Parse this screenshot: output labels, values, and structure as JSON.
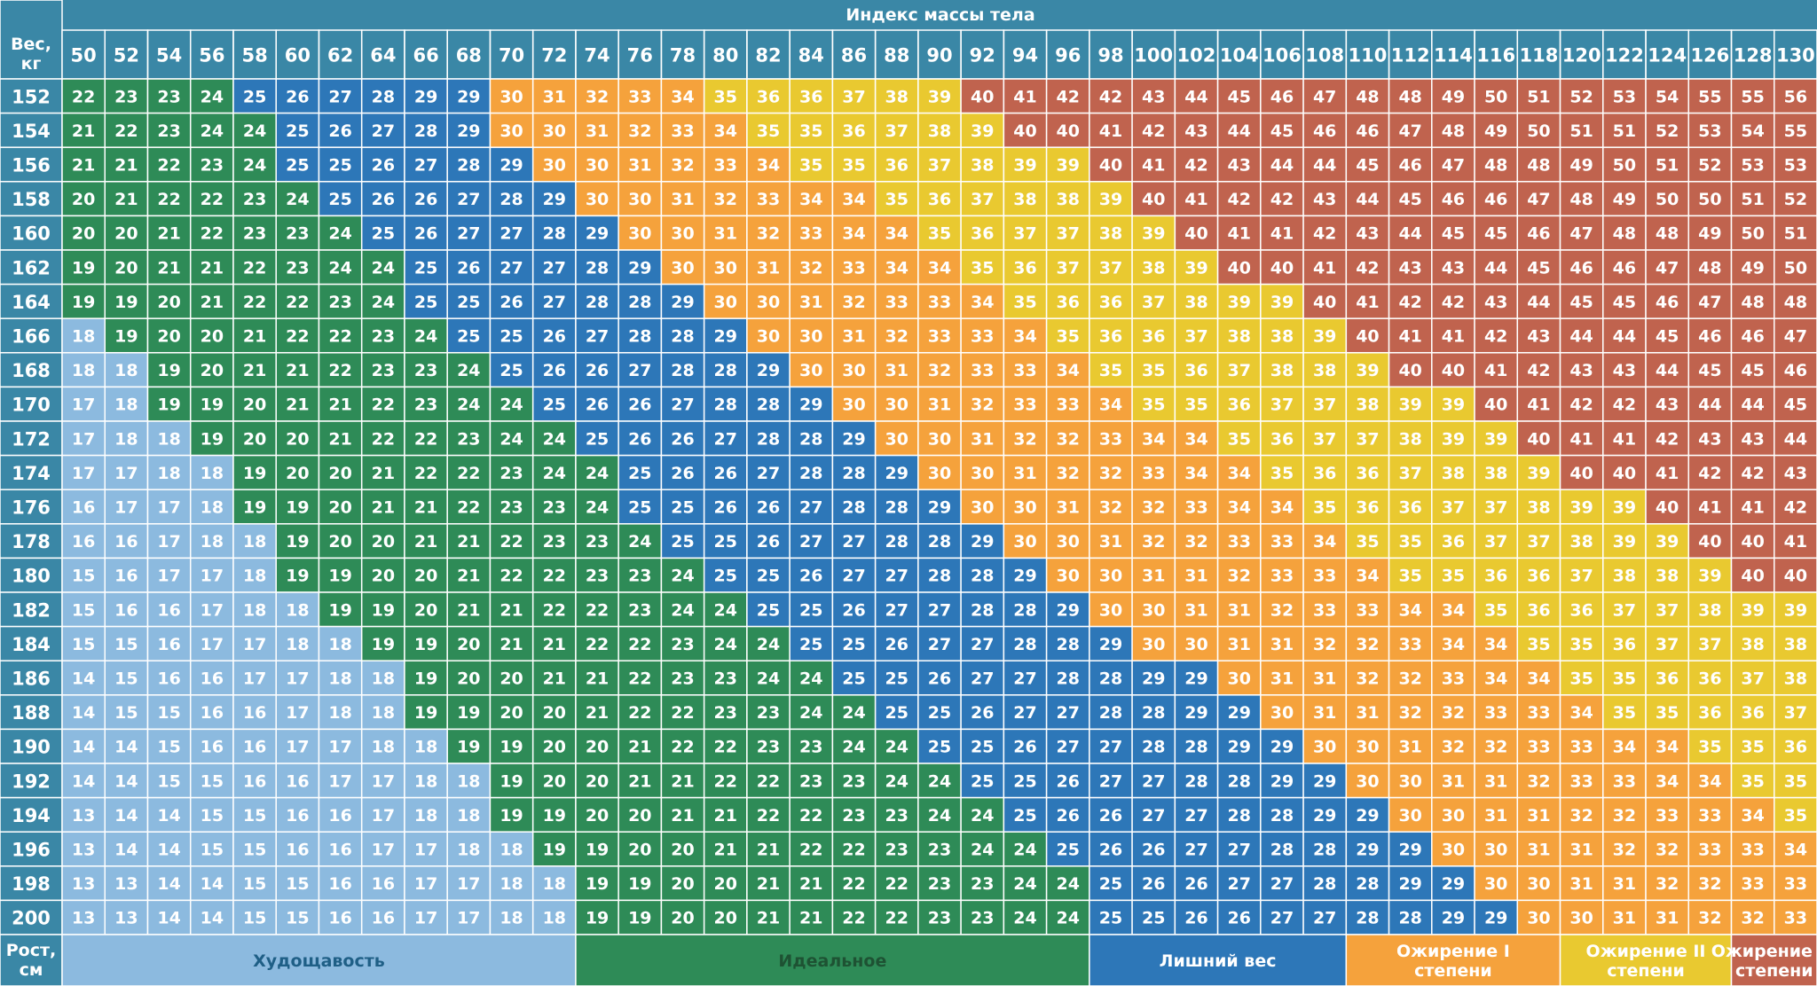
{
  "chart_data": {
    "type": "heatmap",
    "title": "Индекс массы тела",
    "x_axis_label": "Вес, кг",
    "y_axis_label": "Рост, см",
    "weights": [
      50,
      52,
      54,
      56,
      58,
      60,
      62,
      64,
      66,
      68,
      70,
      72,
      74,
      76,
      78,
      80,
      82,
      84,
      86,
      88,
      90,
      92,
      94,
      96,
      98,
      100,
      102,
      104,
      106,
      108,
      110,
      112,
      114,
      116,
      118,
      120,
      122,
      124,
      126,
      128,
      130
    ],
    "heights": [
      152,
      154,
      156,
      158,
      160,
      162,
      164,
      166,
      168,
      170,
      172,
      174,
      176,
      178,
      180,
      182,
      184,
      186,
      188,
      190,
      192,
      194,
      196,
      198,
      200
    ],
    "values": [
      [
        22,
        23,
        23,
        24,
        25,
        26,
        27,
        28,
        29,
        29,
        30,
        31,
        32,
        33,
        34,
        35,
        36,
        36,
        37,
        38,
        39,
        40,
        41,
        42,
        42,
        43,
        44,
        45,
        46,
        47,
        48,
        48,
        49,
        50,
        51,
        52,
        53,
        54,
        55,
        55,
        56
      ],
      [
        21,
        22,
        23,
        24,
        24,
        25,
        26,
        27,
        28,
        29,
        30,
        30,
        31,
        32,
        33,
        34,
        35,
        35,
        36,
        37,
        38,
        39,
        40,
        40,
        41,
        42,
        43,
        44,
        45,
        46,
        46,
        47,
        48,
        49,
        50,
        51,
        51,
        52,
        53,
        54,
        55
      ],
      [
        21,
        21,
        22,
        23,
        24,
        25,
        25,
        26,
        27,
        28,
        29,
        30,
        30,
        31,
        32,
        33,
        34,
        35,
        35,
        36,
        37,
        38,
        39,
        39,
        40,
        41,
        42,
        43,
        44,
        44,
        45,
        46,
        47,
        48,
        48,
        49,
        50,
        51,
        52,
        53,
        53
      ],
      [
        20,
        21,
        22,
        22,
        23,
        24,
        25,
        26,
        26,
        27,
        28,
        29,
        30,
        30,
        31,
        32,
        33,
        34,
        34,
        35,
        36,
        37,
        38,
        38,
        39,
        40,
        41,
        42,
        42,
        43,
        44,
        45,
        46,
        46,
        47,
        48,
        49,
        50,
        50,
        51,
        52
      ],
      [
        20,
        20,
        21,
        22,
        23,
        23,
        24,
        25,
        26,
        27,
        27,
        28,
        29,
        30,
        30,
        31,
        32,
        33,
        34,
        34,
        35,
        36,
        37,
        37,
        38,
        39,
        40,
        41,
        41,
        42,
        43,
        44,
        45,
        45,
        46,
        47,
        48,
        48,
        49,
        50,
        51
      ],
      [
        19,
        20,
        21,
        21,
        22,
        23,
        24,
        24,
        25,
        26,
        27,
        27,
        28,
        29,
        30,
        30,
        31,
        32,
        33,
        34,
        34,
        35,
        36,
        37,
        37,
        38,
        39,
        40,
        40,
        41,
        42,
        43,
        43,
        44,
        45,
        46,
        46,
        47,
        48,
        49,
        50
      ],
      [
        19,
        19,
        20,
        21,
        22,
        22,
        23,
        24,
        25,
        25,
        26,
        27,
        28,
        28,
        29,
        30,
        30,
        31,
        32,
        33,
        33,
        34,
        35,
        36,
        36,
        37,
        38,
        39,
        39,
        40,
        41,
        42,
        42,
        43,
        44,
        45,
        45,
        46,
        47,
        48,
        48
      ],
      [
        18,
        19,
        20,
        20,
        21,
        22,
        22,
        23,
        24,
        25,
        25,
        26,
        27,
        28,
        28,
        29,
        30,
        30,
        31,
        32,
        33,
        33,
        34,
        35,
        36,
        36,
        37,
        38,
        38,
        39,
        40,
        41,
        41,
        42,
        43,
        44,
        44,
        45,
        46,
        46,
        47
      ],
      [
        18,
        18,
        19,
        20,
        21,
        21,
        22,
        23,
        23,
        24,
        25,
        26,
        26,
        27,
        28,
        28,
        29,
        30,
        30,
        31,
        32,
        33,
        33,
        34,
        35,
        35,
        36,
        37,
        38,
        38,
        39,
        40,
        40,
        41,
        42,
        43,
        43,
        44,
        45,
        45,
        46
      ],
      [
        17,
        18,
        19,
        19,
        20,
        21,
        21,
        22,
        23,
        24,
        24,
        25,
        26,
        26,
        27,
        28,
        28,
        29,
        30,
        30,
        31,
        32,
        33,
        33,
        34,
        35,
        35,
        36,
        37,
        37,
        38,
        39,
        39,
        40,
        41,
        42,
        42,
        43,
        44,
        44,
        45
      ],
      [
        17,
        18,
        18,
        19,
        20,
        20,
        21,
        22,
        22,
        23,
        24,
        24,
        25,
        26,
        26,
        27,
        28,
        28,
        29,
        30,
        30,
        31,
        32,
        32,
        33,
        34,
        34,
        35,
        36,
        37,
        37,
        38,
        39,
        39,
        40,
        41,
        41,
        42,
        43,
        43,
        44
      ],
      [
        17,
        17,
        18,
        18,
        19,
        20,
        20,
        21,
        22,
        22,
        23,
        24,
        24,
        25,
        26,
        26,
        27,
        28,
        28,
        29,
        30,
        30,
        31,
        32,
        32,
        33,
        34,
        34,
        35,
        36,
        36,
        37,
        38,
        38,
        39,
        40,
        40,
        41,
        42,
        42,
        43
      ],
      [
        16,
        17,
        17,
        18,
        19,
        19,
        20,
        21,
        21,
        22,
        23,
        23,
        24,
        25,
        25,
        26,
        26,
        27,
        28,
        28,
        29,
        30,
        30,
        31,
        32,
        32,
        33,
        34,
        34,
        35,
        36,
        36,
        37,
        37,
        38,
        39,
        39,
        40,
        41,
        41,
        42
      ],
      [
        16,
        16,
        17,
        18,
        18,
        19,
        20,
        20,
        21,
        21,
        22,
        23,
        23,
        24,
        25,
        25,
        26,
        27,
        27,
        28,
        28,
        29,
        30,
        30,
        31,
        32,
        32,
        33,
        33,
        34,
        35,
        35,
        36,
        37,
        37,
        38,
        39,
        39,
        40,
        40,
        41
      ],
      [
        15,
        16,
        17,
        17,
        18,
        19,
        19,
        20,
        20,
        21,
        22,
        22,
        23,
        23,
        24,
        25,
        25,
        26,
        27,
        27,
        28,
        28,
        29,
        30,
        30,
        31,
        31,
        32,
        33,
        33,
        34,
        35,
        35,
        36,
        36,
        37,
        38,
        38,
        39,
        40,
        40
      ],
      [
        15,
        16,
        16,
        17,
        18,
        18,
        19,
        19,
        20,
        21,
        21,
        22,
        22,
        23,
        24,
        24,
        25,
        25,
        26,
        27,
        27,
        28,
        28,
        29,
        30,
        30,
        31,
        31,
        32,
        33,
        33,
        34,
        34,
        35,
        36,
        36,
        37,
        37,
        38,
        39,
        39
      ],
      [
        15,
        15,
        16,
        17,
        17,
        18,
        18,
        19,
        19,
        20,
        21,
        21,
        22,
        22,
        23,
        24,
        24,
        25,
        25,
        26,
        27,
        27,
        28,
        28,
        29,
        30,
        30,
        31,
        31,
        32,
        32,
        33,
        34,
        34,
        35,
        35,
        36,
        37,
        37,
        38,
        38
      ],
      [
        14,
        15,
        16,
        16,
        17,
        17,
        18,
        18,
        19,
        20,
        20,
        21,
        21,
        22,
        23,
        23,
        24,
        24,
        25,
        25,
        26,
        27,
        27,
        28,
        28,
        29,
        29,
        30,
        31,
        31,
        32,
        32,
        33,
        34,
        34,
        35,
        35,
        36,
        36,
        37,
        38
      ],
      [
        14,
        15,
        15,
        16,
        16,
        17,
        18,
        18,
        19,
        19,
        20,
        20,
        21,
        22,
        22,
        23,
        23,
        24,
        24,
        25,
        25,
        26,
        27,
        27,
        28,
        28,
        29,
        29,
        30,
        31,
        31,
        32,
        32,
        33,
        33,
        34,
        35,
        35,
        36,
        36,
        37
      ],
      [
        14,
        14,
        15,
        16,
        16,
        17,
        17,
        18,
        18,
        19,
        19,
        20,
        20,
        21,
        22,
        22,
        23,
        23,
        24,
        24,
        25,
        25,
        26,
        27,
        27,
        28,
        28,
        29,
        29,
        30,
        30,
        31,
        32,
        32,
        33,
        33,
        34,
        34,
        35,
        35,
        36
      ],
      [
        14,
        14,
        15,
        15,
        16,
        16,
        17,
        17,
        18,
        18,
        19,
        20,
        20,
        21,
        21,
        22,
        22,
        23,
        23,
        24,
        24,
        25,
        25,
        26,
        27,
        27,
        28,
        28,
        29,
        29,
        30,
        30,
        31,
        31,
        32,
        33,
        33,
        34,
        34,
        35,
        35
      ],
      [
        13,
        14,
        14,
        15,
        15,
        16,
        16,
        17,
        18,
        18,
        19,
        19,
        20,
        20,
        21,
        21,
        22,
        22,
        23,
        23,
        24,
        24,
        25,
        26,
        26,
        27,
        27,
        28,
        28,
        29,
        29,
        30,
        30,
        31,
        31,
        32,
        32,
        33,
        33,
        34,
        35
      ],
      [
        13,
        14,
        14,
        15,
        15,
        16,
        16,
        17,
        17,
        18,
        18,
        19,
        19,
        20,
        20,
        21,
        21,
        22,
        22,
        23,
        23,
        24,
        24,
        25,
        26,
        26,
        27,
        27,
        28,
        28,
        29,
        29,
        30,
        30,
        31,
        31,
        32,
        32,
        33,
        33,
        34
      ],
      [
        13,
        13,
        14,
        14,
        15,
        15,
        16,
        16,
        17,
        17,
        18,
        18,
        19,
        19,
        20,
        20,
        21,
        21,
        22,
        22,
        23,
        23,
        24,
        24,
        25,
        26,
        26,
        27,
        27,
        28,
        28,
        29,
        29,
        30,
        30,
        31,
        31,
        32,
        32,
        33,
        33
      ],
      [
        13,
        13,
        14,
        14,
        15,
        15,
        16,
        16,
        17,
        17,
        18,
        18,
        19,
        19,
        20,
        20,
        21,
        21,
        22,
        22,
        23,
        23,
        24,
        24,
        25,
        25,
        26,
        26,
        27,
        27,
        28,
        28,
        29,
        29,
        30,
        30,
        31,
        31,
        32,
        32,
        33
      ]
    ],
    "categories": [
      {
        "label": "Худощавость",
        "color": "#8cbadf",
        "range": [
          0,
          18
        ]
      },
      {
        "label": "Идеальное",
        "color": "#2e8b57",
        "range": [
          19,
          24
        ]
      },
      {
        "label": "Лишний вес",
        "color": "#2d77b8",
        "range": [
          25,
          29
        ]
      },
      {
        "label": "Ожирение I степени",
        "color": "#f5a23c",
        "range": [
          30,
          34
        ]
      },
      {
        "label": "Ожирение II степени",
        "color": "#e9c930",
        "range": [
          35,
          39
        ]
      },
      {
        "label": "Ожирение III степени",
        "color": "#c0634e",
        "range": [
          40,
          99
        ]
      }
    ],
    "header_color": "#3a87a6",
    "value_text_color": "#ffffff"
  }
}
